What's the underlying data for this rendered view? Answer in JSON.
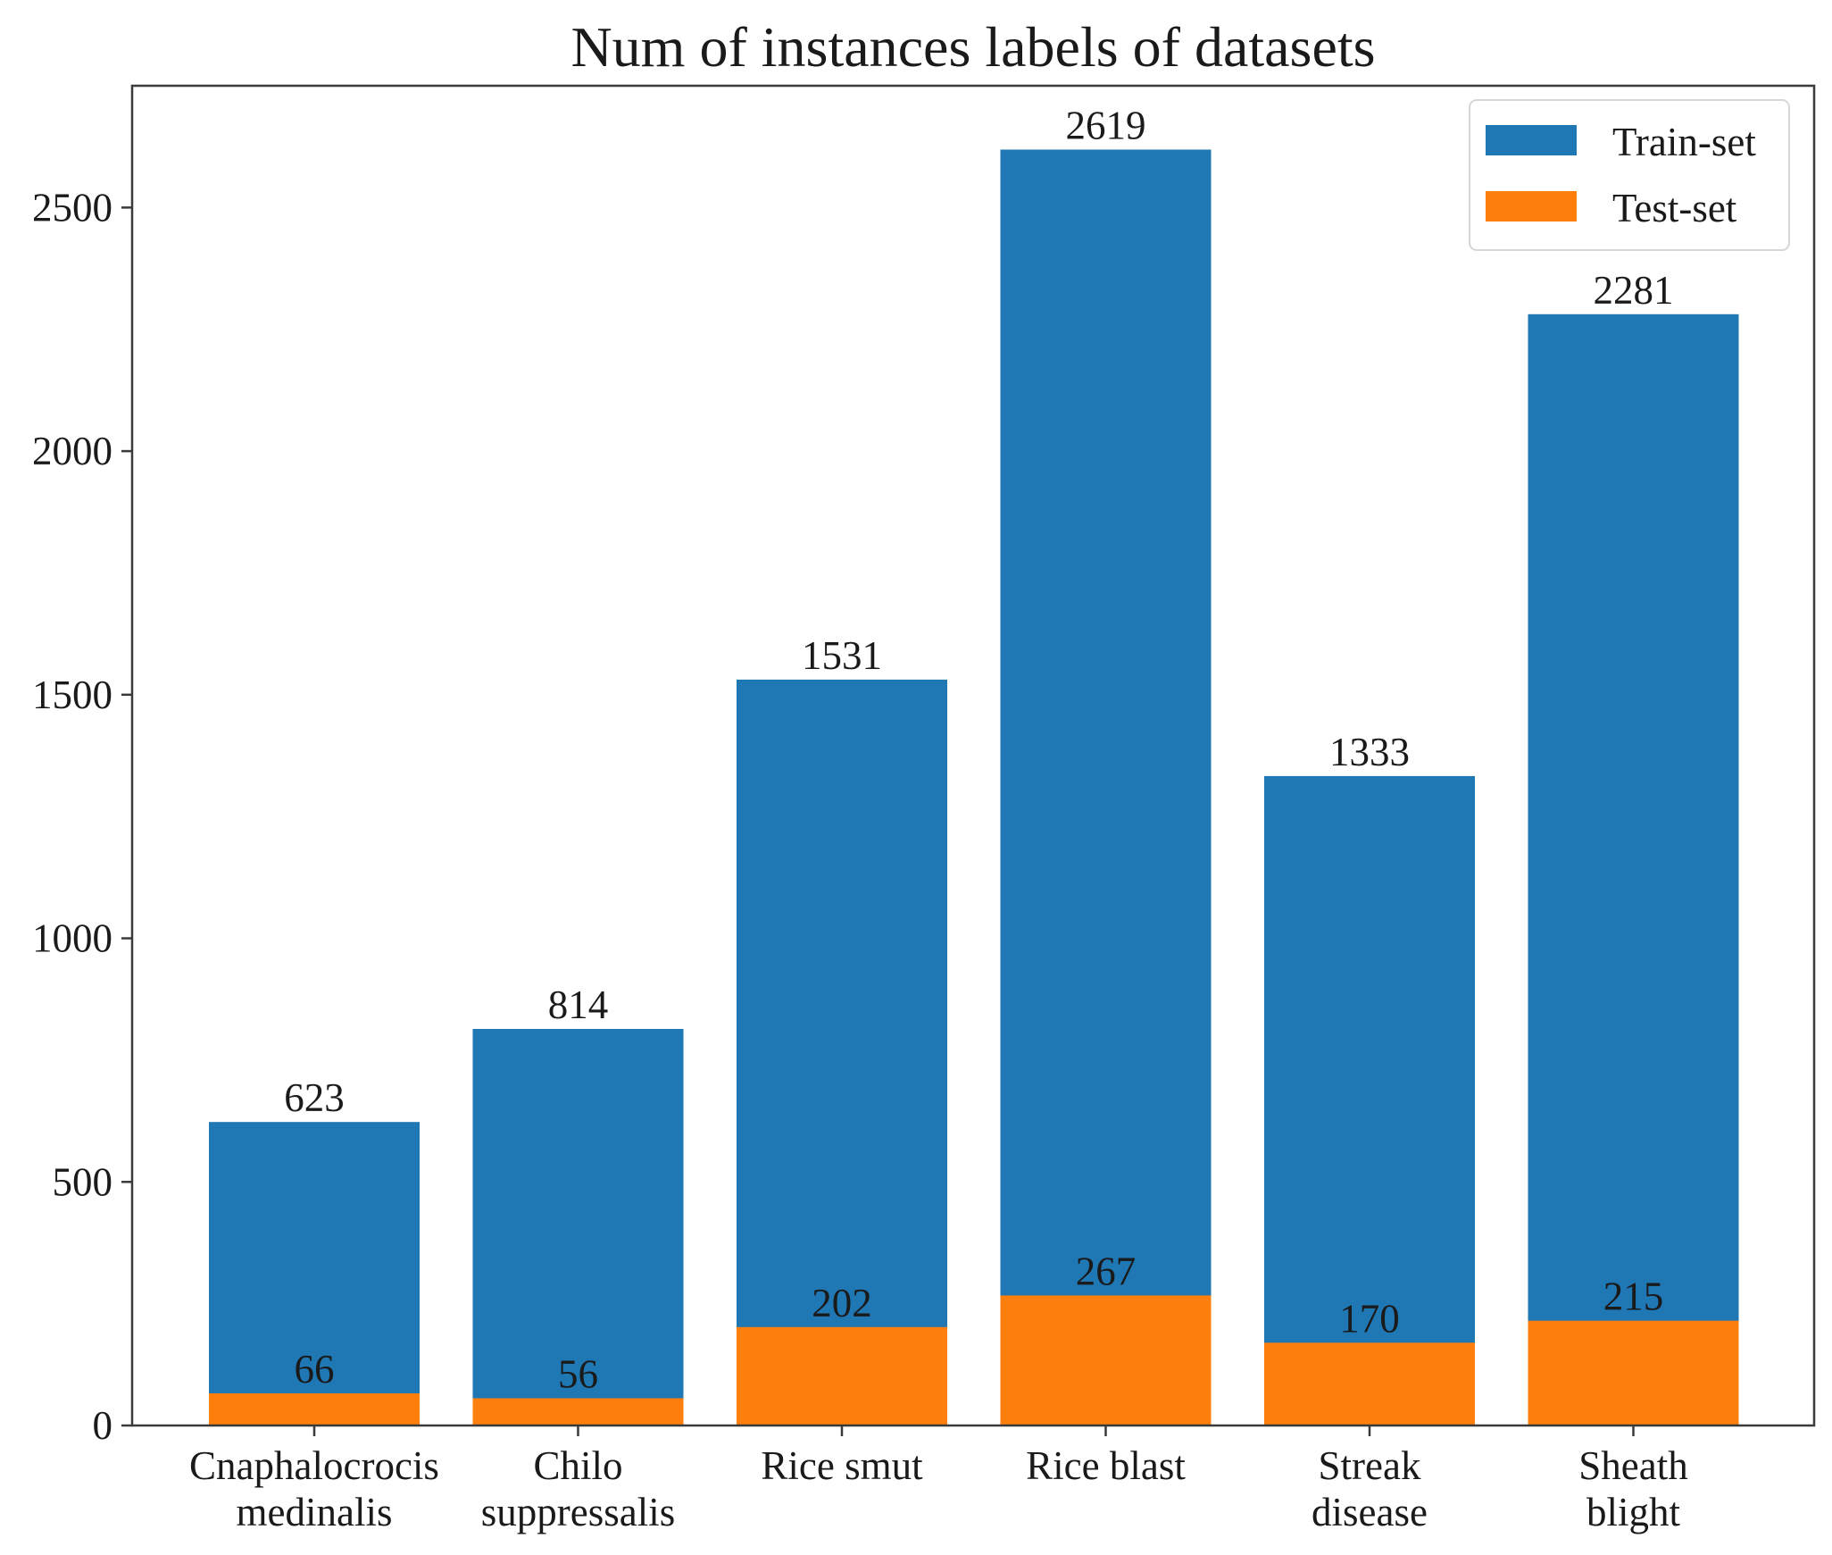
{
  "chart_data": {
    "type": "bar",
    "stacked": false,
    "overlapping": true,
    "title": "Num of instances labels of datasets",
    "xlabel": "",
    "ylabel": "",
    "ylim": [
      0,
      2750
    ],
    "yticks": [
      0,
      500,
      1000,
      1500,
      2000,
      2500
    ],
    "categories": [
      [
        "Cnaphalocrocis",
        "medinalis"
      ],
      [
        "Chilo",
        "suppressalis"
      ],
      [
        "Rice smut"
      ],
      [
        "Rice blast"
      ],
      [
        "Streak",
        "disease"
      ],
      [
        "Sheath",
        "blight"
      ]
    ],
    "series": [
      {
        "name": "Train-set",
        "color": "#1f77b4",
        "values": [
          623,
          814,
          1531,
          2619,
          1333,
          2281
        ]
      },
      {
        "name": "Test-set",
        "color": "#ff7f0e",
        "values": [
          66,
          56,
          202,
          267,
          170,
          215
        ]
      }
    ],
    "legend": {
      "position": "top-right",
      "entries": [
        "Train-set",
        "Test-set"
      ]
    },
    "grid": false
  }
}
